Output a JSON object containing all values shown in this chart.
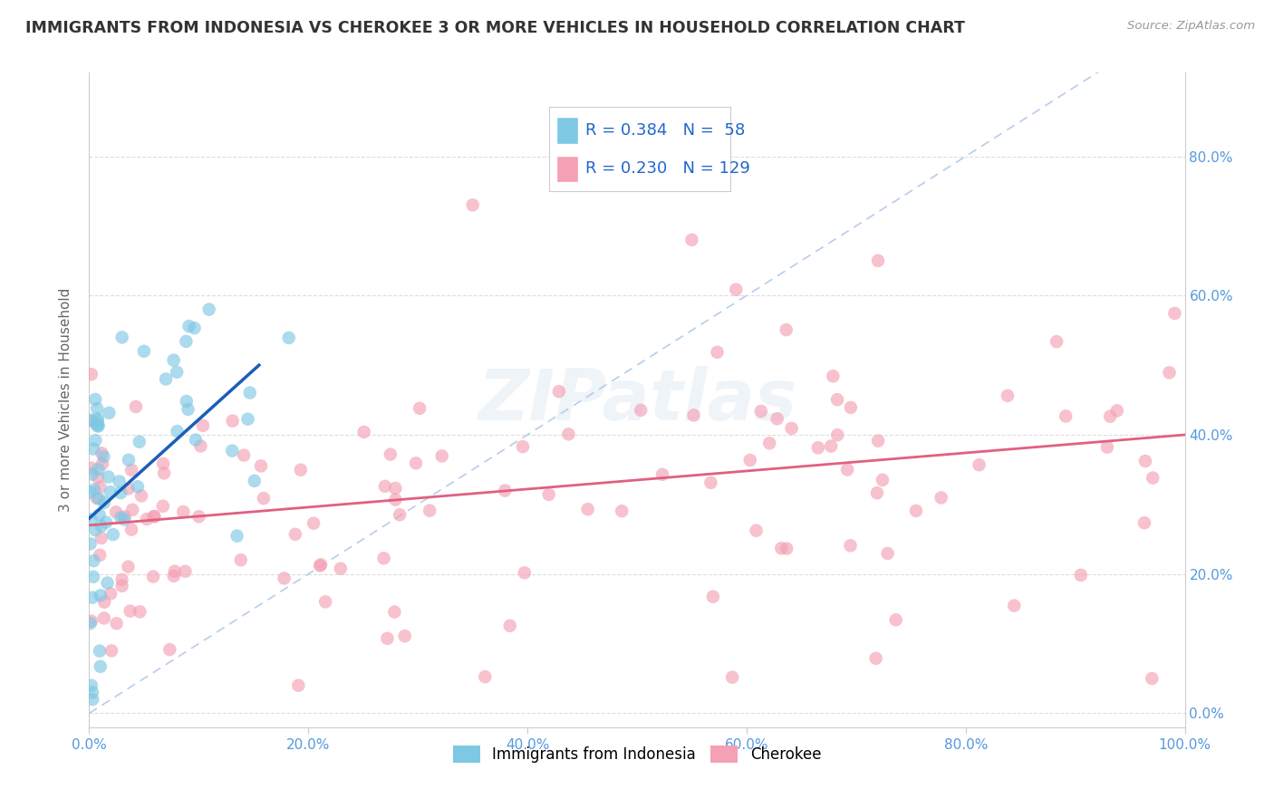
{
  "title": "IMMIGRANTS FROM INDONESIA VS CHEROKEE 3 OR MORE VEHICLES IN HOUSEHOLD CORRELATION CHART",
  "source": "Source: ZipAtlas.com",
  "ylabel": "3 or more Vehicles in Household",
  "legend_labels": [
    "Immigrants from Indonesia",
    "Cherokee"
  ],
  "R_indonesia": 0.384,
  "N_indonesia": 58,
  "R_cherokee": 0.23,
  "N_cherokee": 129,
  "xlim": [
    0.0,
    1.0
  ],
  "ylim": [
    -0.02,
    0.92
  ],
  "xticks": [
    0.0,
    0.2,
    0.4,
    0.6,
    0.8,
    1.0
  ],
  "yticks": [
    0.0,
    0.2,
    0.4,
    0.6,
    0.8
  ],
  "xticklabels": [
    "0.0%",
    "20.0%",
    "40.0%",
    "60.0%",
    "80.0%",
    "100.0%"
  ],
  "yticklabels": [
    "0.0%",
    "20.0%",
    "40.0%",
    "60.0%",
    "80.0%"
  ],
  "color_indonesia": "#7ec8e3",
  "color_cherokee": "#f4a0b5",
  "line_color_indonesia": "#1a5eb8",
  "line_color_cherokee": "#e06080",
  "diag_color": "#b0c8e8",
  "background_color": "#ffffff",
  "title_color": "#333333",
  "source_color": "#999999",
  "watermark": "ZIPatlas",
  "ind_line_x0": 0.0,
  "ind_line_y0": 0.28,
  "ind_line_x1": 0.155,
  "ind_line_y1": 0.5,
  "cher_line_x0": 0.0,
  "cher_line_y0": 0.27,
  "cher_line_x1": 1.0,
  "cher_line_y1": 0.4
}
